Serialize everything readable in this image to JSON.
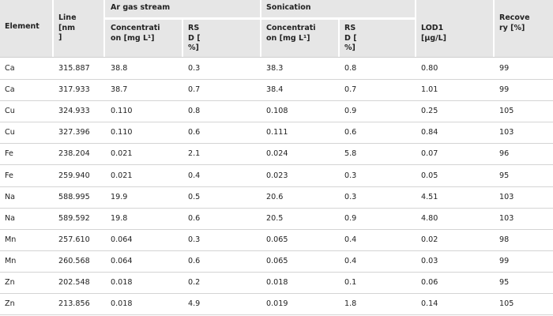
{
  "table": {
    "headers": {
      "element": "Element",
      "line": [
        "Line",
        "[nm",
        "]"
      ],
      "ar_group": "Ar gas stream",
      "son_group": "Sonication",
      "conc_ar": [
        "Concentrati",
        "on [mg L¹]"
      ],
      "rsd_ar": [
        "RS",
        "D [",
        "%]"
      ],
      "conc_son": [
        "Concentrati",
        "on [mg L¹]"
      ],
      "rsd_son": [
        "RS",
        "D [",
        "%]"
      ],
      "lod": [
        "LOD1",
        "[μg/L]"
      ],
      "recovery": [
        "Recove",
        "ry [%]"
      ]
    },
    "rows": [
      [
        "Ca",
        "315.887",
        "38.8",
        "0.3",
        "38.3",
        "0.8",
        "0.80",
        "99"
      ],
      [
        "Ca",
        "317.933",
        "38.7",
        "0.7",
        "38.4",
        "0.7",
        "1.01",
        "99"
      ],
      [
        "Cu",
        "324.933",
        "0.110",
        "0.8",
        "0.108",
        "0.9",
        "0.25",
        "105"
      ],
      [
        "Cu",
        "327.396",
        "0.110",
        "0.6",
        "0.111",
        "0.6",
        "0.84",
        "103"
      ],
      [
        "Fe",
        "238.204",
        "0.021",
        "2.1",
        "0.024",
        "5.8",
        "0.07",
        "96"
      ],
      [
        "Fe",
        "259.940",
        "0.021",
        "0.4",
        "0.023",
        "0.3",
        "0.05",
        "95"
      ],
      [
        "Na",
        "588.995",
        "19.9",
        "0.5",
        "20.6",
        "0.3",
        "4.51",
        "103"
      ],
      [
        "Na",
        "589.592",
        "19.8",
        "0.6",
        "20.5",
        "0.9",
        "4.80",
        "103"
      ],
      [
        "Mn",
        "257.610",
        "0.064",
        "0.3",
        "0.065",
        "0.4",
        "0.02",
        "98"
      ],
      [
        "Mn",
        "260.568",
        "0.064",
        "0.6",
        "0.065",
        "0.4",
        "0.03",
        "99"
      ],
      [
        "Zn",
        "202.548",
        "0.018",
        "0.2",
        "0.018",
        "0.1",
        "0.06",
        "95"
      ],
      [
        "Zn",
        "213.856",
        "0.018",
        "4.9",
        "0.019",
        "1.8",
        "0.14",
        "105"
      ]
    ]
  }
}
